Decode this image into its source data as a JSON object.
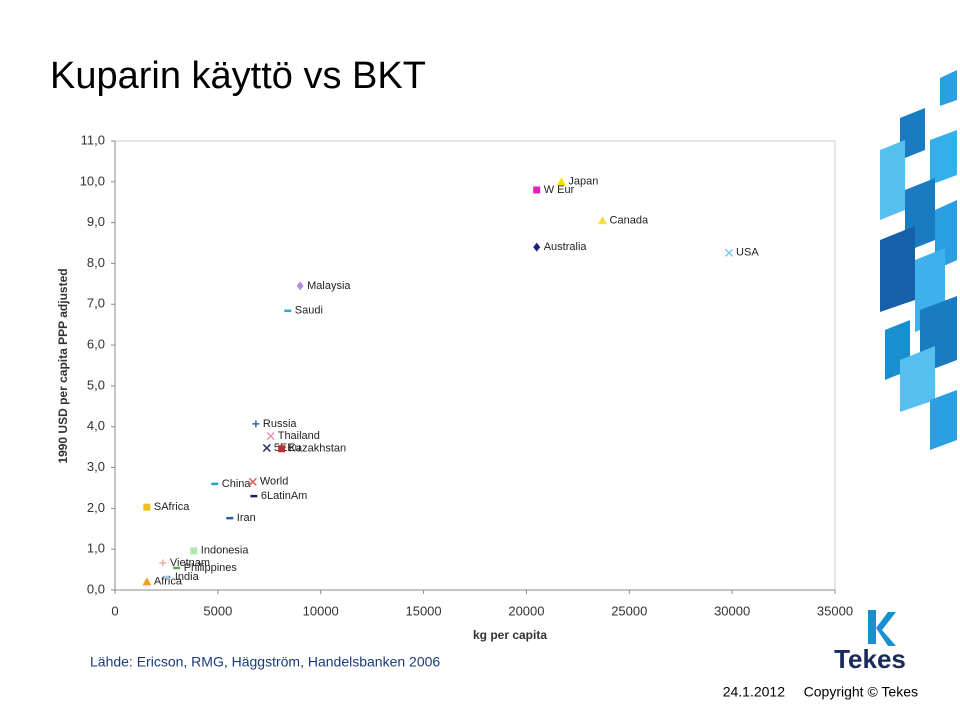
{
  "chart_data": {
    "type": "scatter",
    "title": "Kuparin käyttö vs BKT",
    "x_label": "kg per capita",
    "y_label": "1990 USD per capita PPP adjusted",
    "xlim": [
      0,
      35000
    ],
    "xticks": [
      0,
      5000,
      10000,
      15000,
      20000,
      25000,
      30000,
      35000
    ],
    "ylim": [
      0,
      11
    ],
    "yticks": [
      {
        "value": 0,
        "label": "0,0"
      },
      {
        "value": 1,
        "label": "1,0"
      },
      {
        "value": 2,
        "label": "2,0"
      },
      {
        "value": 3,
        "label": "3,0"
      },
      {
        "value": 4,
        "label": "4,0"
      },
      {
        "value": 5,
        "label": "5,0"
      },
      {
        "value": 6,
        "label": "6,0"
      },
      {
        "value": 7,
        "label": "7,0"
      },
      {
        "value": 8,
        "label": "8,0"
      },
      {
        "value": 9,
        "label": "9,0"
      },
      {
        "value": 10,
        "label": "10,0"
      },
      {
        "value": 11,
        "label": "11,0"
      }
    ],
    "grid": false,
    "series": [
      {
        "name": "Japan",
        "color": "#f2e000",
        "marker": "triangle",
        "x": [
          21700
        ],
        "values": [
          10.0
        ]
      },
      {
        "name": "W Eur",
        "color": "#e020c0",
        "marker": "square",
        "x": [
          20500
        ],
        "values": [
          9.8
        ]
      },
      {
        "name": "Canada",
        "color": "#f0e040",
        "marker": "triangle",
        "x": [
          23700
        ],
        "values": [
          9.05
        ]
      },
      {
        "name": "Australia",
        "color": "#1a237e",
        "marker": "diamond",
        "x": [
          20500
        ],
        "values": [
          8.4
        ]
      },
      {
        "name": "USA",
        "color": "#80c8e8",
        "marker": "x",
        "x": [
          29850
        ],
        "values": [
          8.26
        ]
      },
      {
        "name": "Malaysia",
        "color": "#b090e0",
        "marker": "diamond",
        "x": [
          9000
        ],
        "values": [
          7.45
        ]
      },
      {
        "name": "Saudi",
        "color": "#20b0d0",
        "marker": "dash",
        "x": [
          8400
        ],
        "values": [
          6.84
        ]
      },
      {
        "name": "Russia",
        "color": "#4060a0",
        "marker": "plus",
        "x": [
          6850
        ],
        "values": [
          4.07
        ]
      },
      {
        "name": "Thailand",
        "color": "#f090b0",
        "marker": "x",
        "x": [
          7570
        ],
        "values": [
          3.77
        ]
      },
      {
        "name": "5EEu",
        "color": "#303080",
        "marker": "x",
        "x": [
          7380
        ],
        "values": [
          3.48
        ]
      },
      {
        "name": "Kazakhstan",
        "color": "#c03030",
        "marker": "square",
        "x": [
          8100
        ],
        "values": [
          3.46
        ]
      },
      {
        "name": "China",
        "color": "#20a0c8",
        "marker": "dash",
        "x": [
          4850
        ],
        "values": [
          2.6
        ]
      },
      {
        "name": "World",
        "color": "#e06060",
        "marker": "x",
        "x": [
          6700
        ],
        "values": [
          2.65
        ]
      },
      {
        "name": "6LatinAm",
        "color": "#202060",
        "marker": "dash",
        "x": [
          6750
        ],
        "values": [
          2.3
        ]
      },
      {
        "name": "SAfrica",
        "color": "#f0c020",
        "marker": "square",
        "x": [
          1550
        ],
        "values": [
          2.03
        ]
      },
      {
        "name": "Iran",
        "color": "#2060a0",
        "marker": "dash",
        "x": [
          5580
        ],
        "values": [
          1.76
        ]
      },
      {
        "name": "Indonesia",
        "color": "#b0e8b0",
        "marker": "square",
        "x": [
          3830
        ],
        "values": [
          0.96
        ]
      },
      {
        "name": "Vietnam",
        "color": "#f0b0a0",
        "marker": "plus",
        "x": [
          2330
        ],
        "values": [
          0.66
        ]
      },
      {
        "name": "Philippines",
        "color": "#60a060",
        "marker": "dash",
        "x": [
          3000
        ],
        "values": [
          0.54
        ]
      },
      {
        "name": "India",
        "color": "#a0d0f0",
        "marker": "dash",
        "x": [
          2570
        ],
        "values": [
          0.32
        ]
      },
      {
        "name": "Africa",
        "color": "#f0a020",
        "marker": "triangle",
        "x": [
          1550
        ],
        "values": [
          0.2
        ]
      }
    ]
  },
  "source": "Lähde: Ericson, RMG, Häggström, Handelsbanken 2006",
  "logo": "Tekes",
  "footer": {
    "date": "24.1.2012",
    "copyright": "Copyright © Tekes"
  }
}
